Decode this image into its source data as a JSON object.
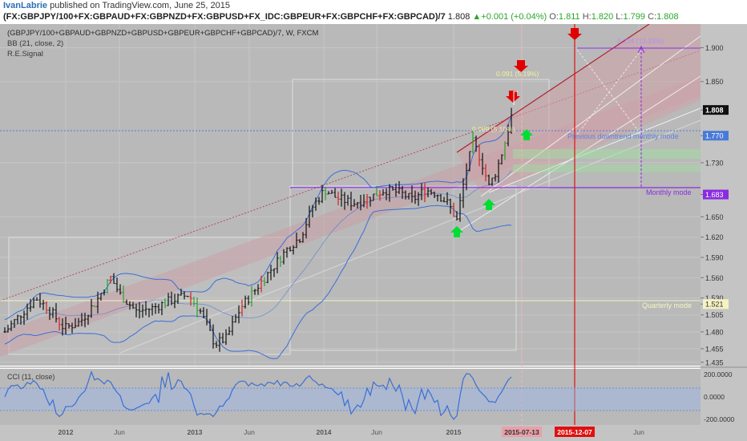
{
  "header": {
    "publisher": "IvanLabrie",
    "published_text": "published on TradingView.com, June 25, 2015",
    "symbol": "(FX:GBPJPY/100+FX:GBPAUD+FX:GBPNZD+FX:GBPUSD+FX_IDC:GBPEUR+FX:GBPCHF+FX:GBPCAD)/7",
    "last": "1.808",
    "change": "+0.001 (+0.04%)",
    "open_label": "O:",
    "open": "1.811",
    "high_label": "H:",
    "high": "1.820",
    "low_label": "L:",
    "low": "1.799",
    "close_label": "C:",
    "close": "1.808"
  },
  "legend": {
    "line1": "(GBPJPY/100+GBPAUD+GBPNZD+GBPUSD+GBPEUR+GBPCHF+GBPCAD)/7, W, FXCM",
    "line2": "BB (21, close, 2)",
    "line3": "R.E.Signal"
  },
  "cci_label": "CCI (11, close)",
  "colors": {
    "background": "#b9b9b9",
    "up_bar": "#2ca02c",
    "down_bar": "#d42020",
    "neutral_bar": "#111111",
    "bollinger": "#3a6fd8",
    "channel_line": "#b02030",
    "mode_line_blue": "#4a7ad8",
    "mode_line_purple": "#8a2be2",
    "vertical_red": "#e01010",
    "arrow_down": "#e00000",
    "arrow_up": "#00dd33"
  },
  "chart_data": [
    {
      "type": "ohlc",
      "interval": "W",
      "source": "FXCM",
      "ylim": [
        1.43,
        1.935
      ],
      "y_ticks": [
        "1.900",
        "1.850",
        "1.808",
        "1.770",
        "1.730",
        "1.683",
        "1.650",
        "1.620",
        "1.590",
        "1.560",
        "1.530",
        "1.521",
        "1.505",
        "1.480",
        "1.455",
        "1.435"
      ],
      "x_ticks": [
        "2012",
        "Jun",
        "2013",
        "Jun",
        "2014",
        "Jun",
        "2015",
        "2015-07-13",
        "2015-12-07",
        "Jun"
      ],
      "price_labels": [
        {
          "value": "1.808",
          "style": "last"
        },
        {
          "value": "1.770",
          "style": "blue"
        },
        {
          "value": "1.683",
          "style": "purple"
        },
        {
          "value": "1.521",
          "style": "yellow"
        }
      ],
      "annotations": [
        {
          "text": "0.091 (5.19%)"
        },
        {
          "text": "0.089 (5.10%)"
        },
        {
          "text": "0.224 (13.33%)"
        },
        {
          "text": "Previous downtrend monthly mode"
        },
        {
          "text": "Monthly mode"
        },
        {
          "text": "Quarterly mode"
        }
      ],
      "highlighted_dates": [
        "2015-07-13",
        "2015-12-07"
      ]
    },
    {
      "type": "line",
      "name": "CCI (11, close)",
      "ylim": [
        -250,
        250
      ],
      "y_ticks": [
        "200.0000",
        "0.0000",
        "-200.0000"
      ],
      "bands": [
        100,
        -100
      ]
    }
  ]
}
